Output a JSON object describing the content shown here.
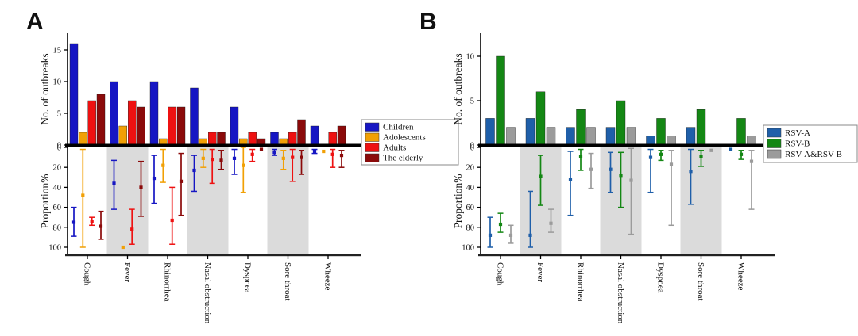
{
  "chart_data": [
    {
      "panel_label": "A",
      "type": "bar",
      "subtype": "grouped-bars-with-inverted-interval-plot",
      "ylabel_top": "No. of outbreaks",
      "ylabel_bottom": "Proportion%",
      "categories": [
        "Cough",
        "Fever",
        "Rhinorrhea",
        "Nasal obstruction",
        "Dyspnea",
        "Sore throat",
        "Wheeze"
      ],
      "top_yticks": [
        0,
        5,
        10,
        15
      ],
      "top_ylim": [
        0,
        17.5
      ],
      "bottom_yticks": [
        0,
        20,
        40,
        60,
        80,
        100
      ],
      "bottom_ylim": [
        0,
        100
      ],
      "bottom_axis_inverted": true,
      "shaded_categories": [
        "Fever",
        "Nasal obstruction",
        "Sore throat"
      ],
      "shade_color": "#DBDBDB",
      "legend_position": "right",
      "series": [
        {
          "name": "Children",
          "color": "#1616C3",
          "outbreaks": [
            16,
            10,
            10,
            9,
            6,
            2,
            3
          ],
          "proportion_pct": [
            {
              "mid": 75,
              "lo": 60,
              "hi": 89
            },
            {
              "mid": 36,
              "lo": 13,
              "hi": 62
            },
            {
              "mid": 31,
              "lo": 8,
              "hi": 56
            },
            {
              "mid": 23,
              "lo": 8,
              "hi": 44
            },
            {
              "mid": 11,
              "lo": 2,
              "hi": 27
            },
            {
              "mid": 5,
              "lo": 2,
              "hi": 8
            },
            {
              "mid": 4,
              "lo": 2,
              "hi": 6
            }
          ]
        },
        {
          "name": "Adolescents",
          "color": "#F1A005",
          "outbreaks": [
            2,
            3,
            1,
            1,
            1,
            1,
            0
          ],
          "proportion_pct": [
            {
              "mid": 48,
              "lo": 2,
              "hi": 100
            },
            {
              "mid": 100,
              "lo": 100,
              "hi": 100,
              "point": true
            },
            {
              "mid": 18,
              "lo": 2,
              "hi": 35
            },
            {
              "mid": 11,
              "lo": 2,
              "hi": 20
            },
            {
              "mid": 18,
              "lo": 0,
              "hi": 45
            },
            {
              "mid": 11,
              "lo": 3,
              "hi": 22
            },
            {
              "mid": 4,
              "lo": 4,
              "hi": 4,
              "point": true
            }
          ]
        },
        {
          "name": "Adults",
          "color": "#EE1111",
          "outbreaks": [
            7,
            7,
            6,
            2,
            2,
            2,
            2
          ],
          "proportion_pct": [
            {
              "mid": 74,
              "lo": 70,
              "hi": 78
            },
            {
              "mid": 82,
              "lo": 62,
              "hi": 97
            },
            {
              "mid": 73,
              "lo": 40,
              "hi": 97
            },
            {
              "mid": 12,
              "lo": 2,
              "hi": 36
            },
            {
              "mid": 7,
              "lo": 2,
              "hi": 14
            },
            {
              "mid": 10,
              "lo": 2,
              "hi": 34
            },
            {
              "mid": 7,
              "lo": 2,
              "hi": 20
            }
          ]
        },
        {
          "name": "The elderly",
          "color": "#8B0A0A",
          "outbreaks": [
            8,
            6,
            6,
            2,
            1,
            4,
            3
          ],
          "proportion_pct": [
            {
              "mid": 79,
              "lo": 64,
              "hi": 92
            },
            {
              "mid": 40,
              "lo": 14,
              "hi": 69
            },
            {
              "mid": 34,
              "lo": 6,
              "hi": 68
            },
            {
              "mid": 13,
              "lo": 3,
              "hi": 22
            },
            {
              "mid": 2,
              "lo": 2,
              "hi": 2,
              "point": true
            },
            {
              "mid": 10,
              "lo": 3,
              "hi": 27
            },
            {
              "mid": 8,
              "lo": 3,
              "hi": 20
            }
          ]
        }
      ]
    },
    {
      "panel_label": "B",
      "type": "bar",
      "subtype": "grouped-bars-with-inverted-interval-plot",
      "ylabel_top": "No. of outbreaks",
      "ylabel_bottom": "Proportion%",
      "categories": [
        "Cough",
        "Fever",
        "Rhinorrhea",
        "Nasal obstruction",
        "Dyspnea",
        "Sore throat",
        "Wheeze"
      ],
      "top_yticks": [
        0,
        5,
        10
      ],
      "top_ylim": [
        0,
        12.5
      ],
      "bottom_yticks": [
        0,
        20,
        40,
        60,
        80,
        100
      ],
      "bottom_ylim": [
        0,
        100
      ],
      "bottom_axis_inverted": true,
      "shaded_categories": [
        "Fever",
        "Nasal obstruction",
        "Sore throat"
      ],
      "shade_color": "#DBDBDB",
      "legend_position": "right",
      "series": [
        {
          "name": "RSV-A",
          "color": "#1F5FA9",
          "outbreaks": [
            3,
            3,
            2,
            2,
            1,
            2,
            0
          ],
          "proportion_pct": [
            {
              "mid": 88,
              "lo": 70,
              "hi": 100
            },
            {
              "mid": 88,
              "lo": 44,
              "hi": 100
            },
            {
              "mid": 32,
              "lo": 4,
              "hi": 68
            },
            {
              "mid": 22,
              "lo": 5,
              "hi": 45
            },
            {
              "mid": 10,
              "lo": 2,
              "hi": 45
            },
            {
              "mid": 24,
              "lo": 2,
              "hi": 57
            },
            {
              "mid": 2,
              "lo": 2,
              "hi": 2,
              "point": true
            }
          ]
        },
        {
          "name": "RSV-B",
          "color": "#148714",
          "outbreaks": [
            10,
            6,
            4,
            5,
            3,
            4,
            3
          ],
          "proportion_pct": [
            {
              "mid": 77,
              "lo": 66,
              "hi": 85
            },
            {
              "mid": 29,
              "lo": 8,
              "hi": 58
            },
            {
              "mid": 9,
              "lo": 2,
              "hi": 23
            },
            {
              "mid": 28,
              "lo": 5,
              "hi": 60
            },
            {
              "mid": 7,
              "lo": 3,
              "hi": 13
            },
            {
              "mid": 9,
              "lo": 3,
              "hi": 19
            },
            {
              "mid": 7,
              "lo": 3,
              "hi": 12
            }
          ]
        },
        {
          "name": "RSV-A&RSV-B",
          "color": "#9B9B9B",
          "outbreaks": [
            2,
            2,
            2,
            2,
            1,
            0,
            1
          ],
          "proportion_pct": [
            {
              "mid": 88,
              "lo": 78,
              "hi": 96
            },
            {
              "mid": 76,
              "lo": 62,
              "hi": 85
            },
            {
              "mid": 22,
              "lo": 6,
              "hi": 41
            },
            {
              "mid": 33,
              "lo": 1,
              "hi": 87
            },
            {
              "mid": 17,
              "lo": 3,
              "hi": 78
            },
            {
              "mid": 3,
              "lo": 3,
              "hi": 3,
              "point": true
            },
            {
              "mid": 14,
              "lo": 3,
              "hi": 62
            }
          ]
        }
      ]
    }
  ]
}
